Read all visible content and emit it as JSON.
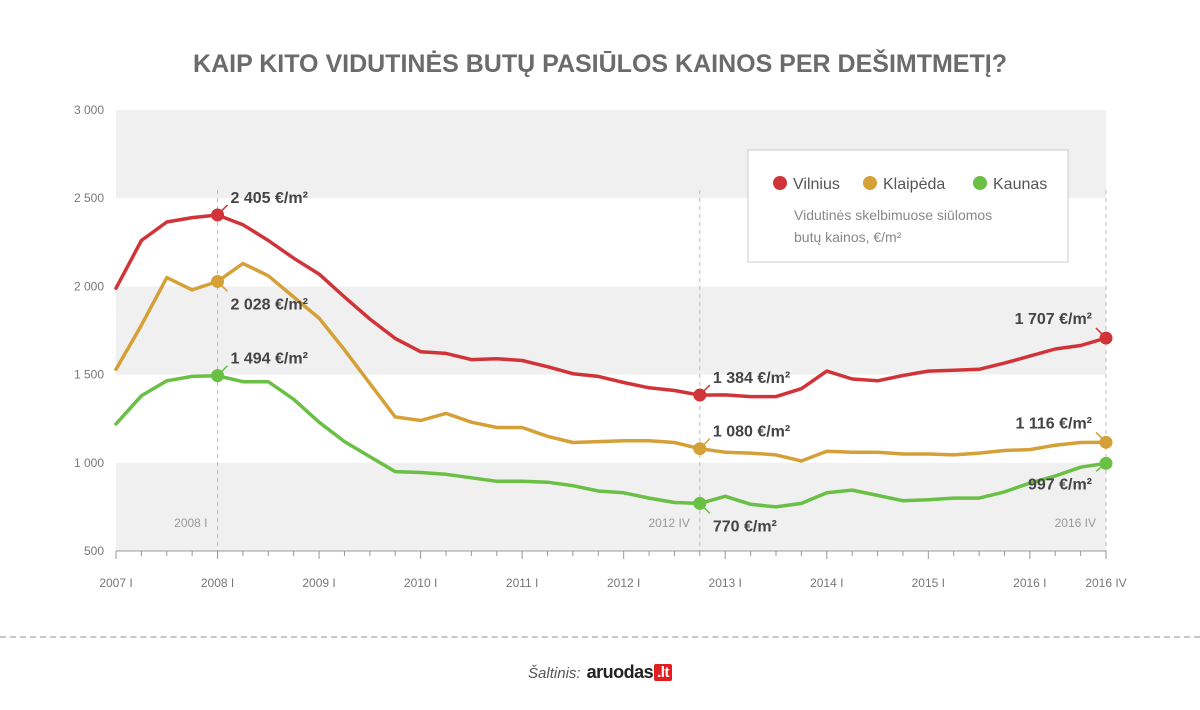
{
  "title": "KAIP KITO VIDUTINĖS BUTŲ PASIŪLOS KAINOS PER DEŠIMTMETĮ?",
  "source": {
    "label": "Šaltinis:",
    "logo_text": "aruodas",
    "logo_suffix": ".lt"
  },
  "chart_data": {
    "type": "line",
    "title": "KAIP KITO VIDUTINĖS BUTŲ PASIŪLOS KAINOS PER DEŠIMTMETĮ?",
    "ylim": [
      500,
      3000
    ],
    "yticks": [
      500,
      1000,
      1500,
      2000,
      2500,
      3000
    ],
    "ytick_labels": [
      "500",
      "1 000",
      "1 500",
      "2 000",
      "2 500",
      "3 000"
    ],
    "x_tick_labels": [
      "2007 I",
      "2008 I",
      "2009 I",
      "2010 I",
      "2011 I",
      "2012 I",
      "2013 I",
      "2014 I",
      "2015 I",
      "2016 I",
      "2016 IV"
    ],
    "x_tick_index": [
      0,
      4,
      8,
      12,
      16,
      20,
      24,
      28,
      32,
      36,
      39
    ],
    "grid": "horizontal alternating bands",
    "legend": {
      "placement": "top-right",
      "note_line1": "Vidutinės skelbimuose siūlomos",
      "note_line2": "butų kainos, €/m²"
    },
    "markers": [
      {
        "index": 4,
        "label": "2008 I"
      },
      {
        "index": 23,
        "label": "2012 IV"
      },
      {
        "index": 39,
        "label": "2016 IV"
      }
    ],
    "series": [
      {
        "name": "Vilnius",
        "color": "#d13438",
        "values": [
          1990,
          2260,
          2365,
          2390,
          2405,
          2350,
          2260,
          2160,
          2070,
          1940,
          1815,
          1705,
          1630,
          1620,
          1585,
          1590,
          1580,
          1545,
          1505,
          1490,
          1455,
          1425,
          1410,
          1384,
          1385,
          1375,
          1375,
          1420,
          1520,
          1475,
          1465,
          1495,
          1520,
          1525,
          1530,
          1565,
          1605,
          1645,
          1665,
          1707
        ]
      },
      {
        "name": "Klaipėda",
        "color": "#d4a037",
        "values": [
          1530,
          1780,
          2050,
          1980,
          2028,
          2130,
          2060,
          1940,
          1820,
          1640,
          1450,
          1260,
          1240,
          1280,
          1230,
          1200,
          1200,
          1150,
          1115,
          1120,
          1125,
          1125,
          1115,
          1080,
          1060,
          1055,
          1045,
          1010,
          1065,
          1060,
          1060,
          1050,
          1050,
          1045,
          1055,
          1070,
          1075,
          1100,
          1115,
          1116
        ]
      },
      {
        "name": "Kaunas",
        "color": "#6abf45",
        "values": [
          1220,
          1380,
          1465,
          1490,
          1494,
          1460,
          1460,
          1360,
          1230,
          1120,
          1035,
          950,
          945,
          935,
          915,
          895,
          895,
          890,
          870,
          840,
          830,
          800,
          775,
          770,
          810,
          765,
          750,
          770,
          830,
          845,
          815,
          785,
          790,
          800,
          800,
          835,
          885,
          925,
          975,
          997
        ]
      }
    ],
    "annotations": [
      {
        "series": 0,
        "index": 4,
        "text": "2 405 €/m²"
      },
      {
        "series": 1,
        "index": 4,
        "text": "2 028 €/m²"
      },
      {
        "series": 2,
        "index": 4,
        "text": "1 494 €/m²"
      },
      {
        "series": 0,
        "index": 23,
        "text": "1 384 €/m²"
      },
      {
        "series": 1,
        "index": 23,
        "text": "1 080 €/m²"
      },
      {
        "series": 2,
        "index": 23,
        "text": "770 €/m²"
      },
      {
        "series": 0,
        "index": 39,
        "text": "1 707 €/m²"
      },
      {
        "series": 1,
        "index": 39,
        "text": "1 116 €/m²"
      },
      {
        "series": 2,
        "index": 39,
        "text": "997 €/m²"
      }
    ]
  }
}
